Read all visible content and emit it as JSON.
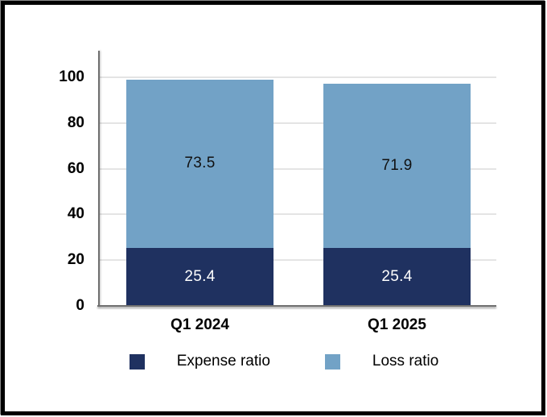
{
  "chart_data": {
    "type": "bar",
    "stacked": true,
    "categories": [
      "Q1 2024",
      "Q1 2025"
    ],
    "series": [
      {
        "name": "Expense ratio",
        "values": [
          25.4,
          25.4
        ],
        "color": "#1F3160",
        "label_color": "#FFFFFF"
      },
      {
        "name": "Loss ratio",
        "values": [
          73.5,
          71.9
        ],
        "color": "#72A2C6",
        "label_color": "#111111"
      }
    ],
    "totals": [
      98.9,
      97.3
    ],
    "y_ticks": [
      0,
      20,
      40,
      60,
      80,
      100
    ],
    "ylim": [
      0,
      112
    ],
    "grid": true,
    "legend_position": "bottom",
    "legend_entries": [
      "Expense ratio",
      "Loss ratio"
    ]
  },
  "colors": {
    "expense_ratio": "#1F3160",
    "loss_ratio": "#72A2C6",
    "gridline": "#E4E4E4",
    "axis": "#6F6F6F",
    "frame": "#000000",
    "background": "#FFFFFF"
  }
}
